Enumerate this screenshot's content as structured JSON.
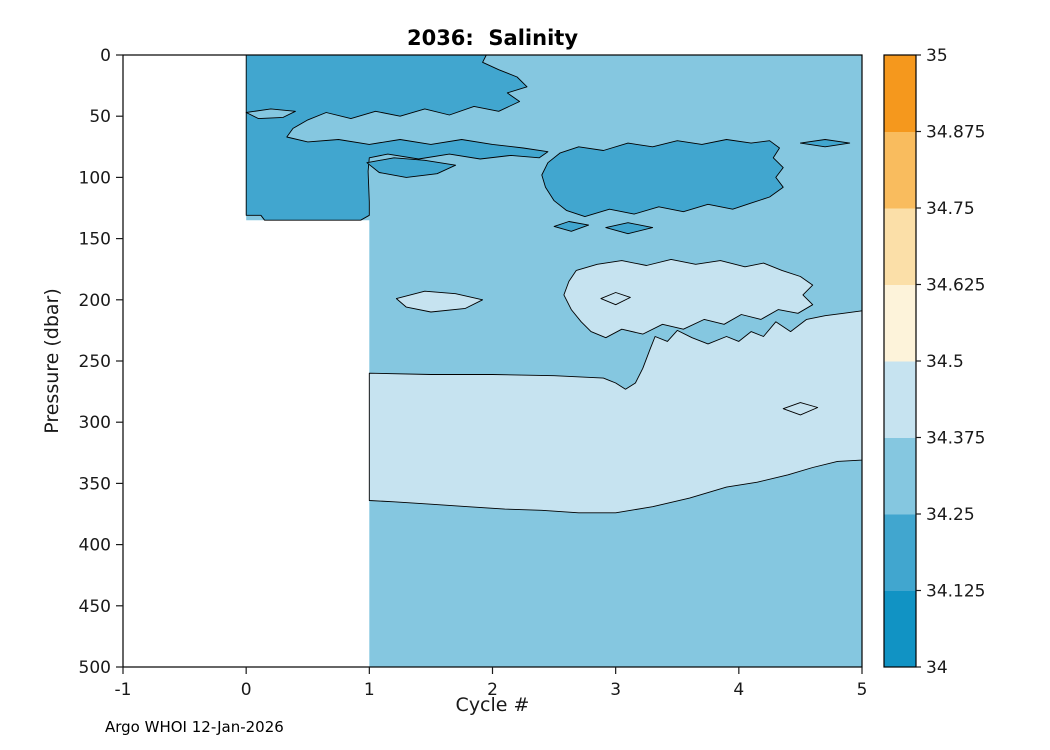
{
  "title": "2036:  Salinity",
  "xlabel": "Cycle #",
  "ylabel": "Pressure (dbar)",
  "footer": "Argo WHOI 12-Jan-2026",
  "chart_data": {
    "type": "contour",
    "title": "2036:  Salinity",
    "xlabel": "Cycle #",
    "ylabel": "Pressure (dbar)",
    "x_range": [
      -1,
      5
    ],
    "x_ticks": [
      -1,
      0,
      1,
      2,
      3,
      4,
      5
    ],
    "y_range": [
      0,
      500
    ],
    "y_ticks": [
      0,
      50,
      100,
      150,
      200,
      250,
      300,
      350,
      400,
      450,
      500
    ],
    "y_inverted": true,
    "grid": false,
    "colorbar": {
      "position": "right",
      "levels": [
        34,
        34.125,
        34.25,
        34.375,
        34.5,
        34.625,
        34.75,
        34.875,
        35
      ],
      "tick_labels": [
        "34",
        "34.125",
        "34.25",
        "34.375",
        "34.5",
        "34.625",
        "34.75",
        "34.875",
        "35"
      ],
      "colors": [
        "#1193c4",
        "#41a6cf",
        "#85c7e0",
        "#c6e3f0",
        "#fdf3da",
        "#fbdfa8",
        "#f9bc5e",
        "#f5981d"
      ]
    },
    "regions": [
      {
        "name": "data-region-base",
        "band": "34.25-34.375",
        "level": 2,
        "outline": false,
        "points": [
          [
            0,
            0
          ],
          [
            5,
            0
          ],
          [
            5,
            500
          ],
          [
            1,
            500
          ],
          [
            1,
            135
          ],
          [
            0,
            135
          ]
        ]
      },
      {
        "name": "light-band-deep",
        "band": "34.375-34.5",
        "level": 3,
        "outline": true,
        "points": [
          [
            1,
            260
          ],
          [
            1.5,
            261
          ],
          [
            2.0,
            261
          ],
          [
            2.5,
            262
          ],
          [
            2.9,
            264
          ],
          [
            3.0,
            268
          ],
          [
            3.08,
            273
          ],
          [
            3.16,
            268
          ],
          [
            3.22,
            256
          ],
          [
            3.28,
            240
          ],
          [
            3.32,
            230
          ],
          [
            3.42,
            234
          ],
          [
            3.5,
            225
          ],
          [
            3.62,
            231
          ],
          [
            3.75,
            236
          ],
          [
            3.9,
            230
          ],
          [
            4.0,
            234
          ],
          [
            4.1,
            226
          ],
          [
            4.2,
            230
          ],
          [
            4.3,
            218
          ],
          [
            4.42,
            226
          ],
          [
            4.55,
            216
          ],
          [
            4.7,
            213
          ],
          [
            4.85,
            211
          ],
          [
            5,
            209
          ],
          [
            5,
            331
          ],
          [
            4.8,
            332
          ],
          [
            4.6,
            337
          ],
          [
            4.4,
            343
          ],
          [
            4.15,
            349
          ],
          [
            3.9,
            353
          ],
          [
            3.6,
            362
          ],
          [
            3.3,
            369
          ],
          [
            3.0,
            374
          ],
          [
            2.7,
            374
          ],
          [
            2.4,
            372
          ],
          [
            2.1,
            371
          ],
          [
            1.8,
            369
          ],
          [
            1.5,
            367
          ],
          [
            1.2,
            365
          ],
          [
            1,
            364
          ]
        ]
      },
      {
        "name": "light-patch-mid",
        "band": "34.375-34.5",
        "level": 3,
        "outline": true,
        "points": [
          [
            2.62,
            185
          ],
          [
            2.68,
            176
          ],
          [
            2.85,
            171
          ],
          [
            3.05,
            168
          ],
          [
            3.25,
            172
          ],
          [
            3.45,
            167
          ],
          [
            3.65,
            171
          ],
          [
            3.85,
            168
          ],
          [
            4.05,
            173
          ],
          [
            4.2,
            170
          ],
          [
            4.35,
            176
          ],
          [
            4.5,
            181
          ],
          [
            4.6,
            188
          ],
          [
            4.52,
            196
          ],
          [
            4.6,
            204
          ],
          [
            4.48,
            211
          ],
          [
            4.32,
            208
          ],
          [
            4.18,
            216
          ],
          [
            4.02,
            212
          ],
          [
            3.88,
            220
          ],
          [
            3.72,
            216
          ],
          [
            3.55,
            224
          ],
          [
            3.38,
            220
          ],
          [
            3.22,
            228
          ],
          [
            3.05,
            224
          ],
          [
            2.92,
            231
          ],
          [
            2.8,
            226
          ],
          [
            2.72,
            218
          ],
          [
            2.64,
            208
          ],
          [
            2.58,
            196
          ]
        ]
      },
      {
        "name": "light-lens-left",
        "band": "34.375-34.5",
        "level": 3,
        "outline": true,
        "points": [
          [
            1.22,
            199
          ],
          [
            1.45,
            193
          ],
          [
            1.7,
            195
          ],
          [
            1.92,
            200
          ],
          [
            1.78,
            207
          ],
          [
            1.5,
            210
          ],
          [
            1.3,
            206
          ]
        ]
      },
      {
        "name": "light-lens-small",
        "band": "34.375-34.5",
        "level": 3,
        "outline": true,
        "points": [
          [
            2.88,
            199
          ],
          [
            3.0,
            194
          ],
          [
            3.12,
            198
          ],
          [
            3.0,
            204
          ]
        ]
      },
      {
        "name": "light-blob-right",
        "band": "34.375-34.5",
        "level": 3,
        "outline": true,
        "points": [
          [
            4.36,
            289
          ],
          [
            4.5,
            284
          ],
          [
            4.64,
            288
          ],
          [
            4.5,
            294
          ]
        ]
      },
      {
        "name": "dark-top-left-block",
        "band": "34.125-34.25",
        "level": 1,
        "outline": true,
        "points": [
          [
            0,
            0
          ],
          [
            1.95,
            0
          ],
          [
            1.92,
            6
          ],
          [
            2.05,
            12
          ],
          [
            2.2,
            18
          ],
          [
            2.28,
            26
          ],
          [
            2.12,
            31
          ],
          [
            2.22,
            38
          ],
          [
            2.05,
            46
          ],
          [
            1.85,
            42
          ],
          [
            1.65,
            49
          ],
          [
            1.45,
            44
          ],
          [
            1.25,
            50
          ],
          [
            1.05,
            46
          ],
          [
            0.85,
            52
          ],
          [
            0.65,
            47
          ],
          [
            0.5,
            53
          ],
          [
            0.38,
            60
          ],
          [
            0.33,
            67
          ],
          [
            0.5,
            71
          ],
          [
            0.75,
            69
          ],
          [
            1.0,
            73
          ],
          [
            1.25,
            69
          ],
          [
            1.5,
            73
          ],
          [
            1.75,
            69
          ],
          [
            2.0,
            73
          ],
          [
            2.25,
            76
          ],
          [
            2.45,
            79
          ],
          [
            2.38,
            84
          ],
          [
            2.15,
            82
          ],
          [
            1.9,
            85
          ],
          [
            1.65,
            81
          ],
          [
            1.4,
            85
          ],
          [
            1.15,
            81
          ],
          [
            1.0,
            84
          ],
          [
            0.99,
            95
          ],
          [
            1.0,
            120
          ],
          [
            1.0,
            131
          ],
          [
            0.93,
            135
          ],
          [
            0.15,
            135
          ],
          [
            0.12,
            131
          ],
          [
            0,
            131
          ]
        ]
      },
      {
        "name": "medium-lens-in-block",
        "band": "34.25-34.375",
        "level": 2,
        "outline": true,
        "points": [
          [
            0,
            47
          ],
          [
            0.2,
            44
          ],
          [
            0.4,
            46
          ],
          [
            0.3,
            51
          ],
          [
            0.1,
            52
          ]
        ]
      },
      {
        "name": "dark-blob-under-tongue",
        "band": "34.125-34.25",
        "level": 1,
        "outline": true,
        "points": [
          [
            0.98,
            88
          ],
          [
            1.2,
            84
          ],
          [
            1.45,
            86
          ],
          [
            1.7,
            90
          ],
          [
            1.55,
            97
          ],
          [
            1.3,
            100
          ],
          [
            1.08,
            96
          ]
        ]
      },
      {
        "name": "dark-band-subsurface",
        "band": "34.125-34.25",
        "level": 1,
        "outline": true,
        "points": [
          [
            2.4,
            98
          ],
          [
            2.45,
            88
          ],
          [
            2.55,
            80
          ],
          [
            2.7,
            75
          ],
          [
            2.9,
            78
          ],
          [
            3.1,
            72
          ],
          [
            3.3,
            75
          ],
          [
            3.5,
            70
          ],
          [
            3.7,
            73
          ],
          [
            3.9,
            69
          ],
          [
            4.1,
            72
          ],
          [
            4.25,
            70
          ],
          [
            4.33,
            76
          ],
          [
            4.28,
            84
          ],
          [
            4.36,
            92
          ],
          [
            4.3,
            100
          ],
          [
            4.36,
            108
          ],
          [
            4.25,
            116
          ],
          [
            4.1,
            121
          ],
          [
            3.95,
            126
          ],
          [
            3.75,
            122
          ],
          [
            3.55,
            128
          ],
          [
            3.35,
            124
          ],
          [
            3.15,
            130
          ],
          [
            2.95,
            126
          ],
          [
            2.75,
            132
          ],
          [
            2.6,
            127
          ],
          [
            2.5,
            119
          ],
          [
            2.43,
            108
          ]
        ]
      },
      {
        "name": "dark-lens-right-top",
        "band": "34.125-34.25",
        "level": 1,
        "outline": true,
        "points": [
          [
            4.5,
            72
          ],
          [
            4.7,
            69
          ],
          [
            4.9,
            72
          ],
          [
            4.7,
            75
          ]
        ]
      },
      {
        "name": "dark-lens-a",
        "band": "34.125-34.25",
        "level": 1,
        "outline": true,
        "points": [
          [
            2.5,
            140
          ],
          [
            2.62,
            136
          ],
          [
            2.78,
            139
          ],
          [
            2.64,
            144
          ]
        ]
      },
      {
        "name": "dark-lens-b",
        "band": "34.125-34.25",
        "level": 1,
        "outline": true,
        "points": [
          [
            2.92,
            141
          ],
          [
            3.1,
            137
          ],
          [
            3.3,
            141
          ],
          [
            3.1,
            146
          ]
        ]
      }
    ]
  }
}
